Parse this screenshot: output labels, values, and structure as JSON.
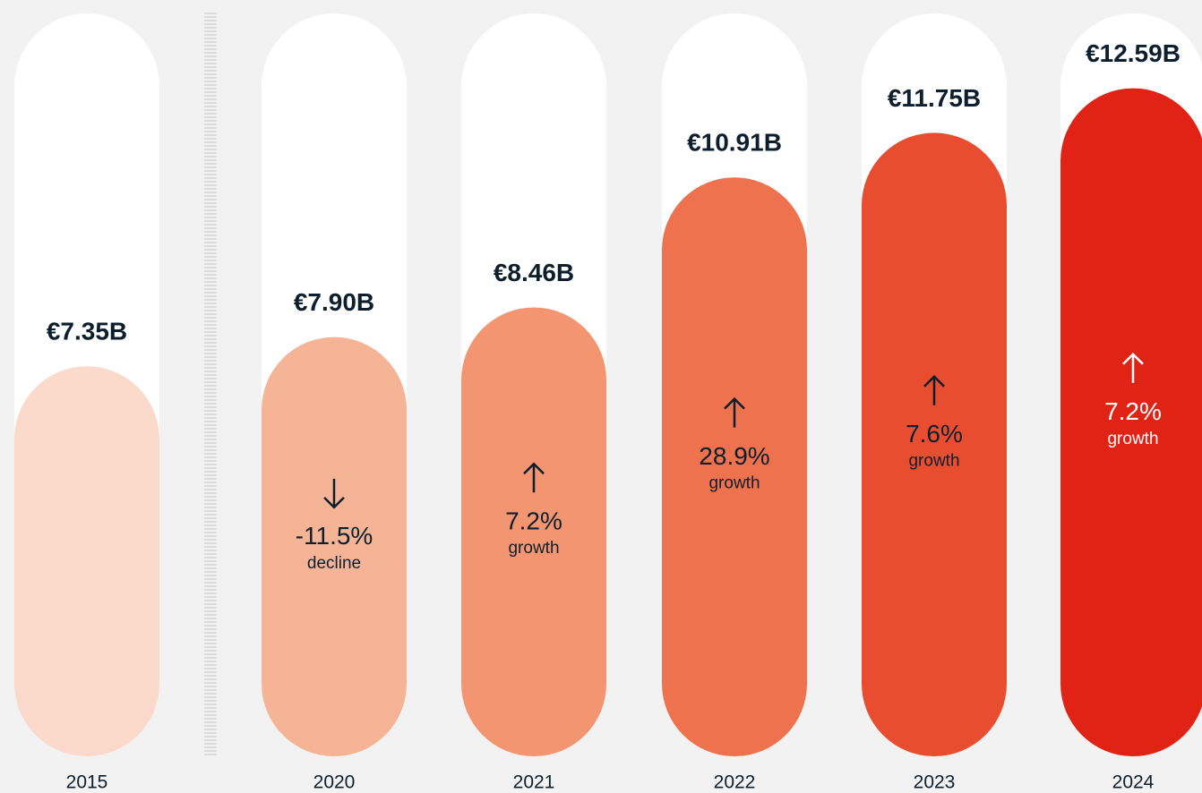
{
  "chart_data": {
    "type": "bar",
    "categories": [
      "2015",
      "2020",
      "2021",
      "2022",
      "2023",
      "2024"
    ],
    "values": [
      7.35,
      7.9,
      8.46,
      10.91,
      11.75,
      12.59
    ],
    "value_labels": [
      "€7.35B",
      "€7.90B",
      "€8.46B",
      "€10.91B",
      "€11.75B",
      "€12.59B"
    ],
    "colors": [
      "#fbdacb",
      "#f6b497",
      "#f39571",
      "#ed724d",
      "#e84d2f",
      "#e12316"
    ],
    "ylim": [
      0,
      14
    ],
    "annotations": [
      {
        "category": "2020",
        "value": -11.5,
        "label": "-11.5%",
        "note": "decline"
      },
      {
        "category": "2021",
        "value": 7.2,
        "label": "7.2%",
        "note": "growth"
      },
      {
        "category": "2022",
        "value": 28.9,
        "label": "28.9%",
        "note": "growth"
      },
      {
        "category": "2023",
        "value": 7.6,
        "label": "7.6%",
        "note": "growth"
      },
      {
        "category": "2024",
        "value": 7.2,
        "label": "7.2%",
        "note": "growth"
      }
    ]
  }
}
